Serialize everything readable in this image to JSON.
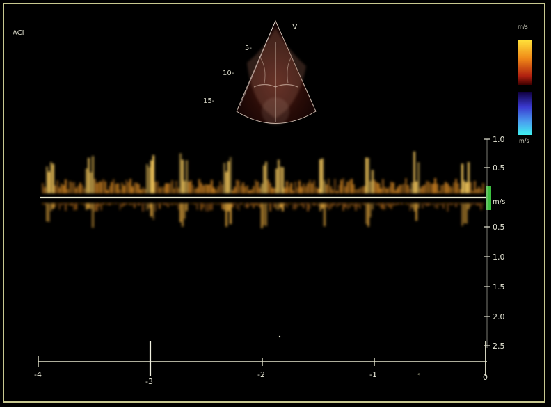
{
  "screen": {
    "probe_label": "ACI",
    "sector_marker": "V",
    "depth_markers": [
      "5-",
      "10-",
      "15-"
    ],
    "color_map": {
      "top_label": "m/s",
      "bottom_label": "m/s"
    },
    "velocity_scale": {
      "unit": "m/s",
      "upper_ticks": [
        "1.0",
        "0.5"
      ],
      "lower_ticks": [
        "0.5",
        "1.0",
        "1.5",
        "2.0",
        "2.5"
      ]
    },
    "time_axis": {
      "tick_labels": [
        "-4",
        "-3",
        "-2",
        "-1",
        "0"
      ],
      "unit": "s"
    },
    "colors": {
      "border": "#c8c890",
      "baseline": "#e8e8d0",
      "marker": "#3cc040",
      "doppler_warm": "#e0a030",
      "doppler_bright": "#ffe070",
      "colorbar_top": "#ffdd33",
      "colorbar_bottom": "#33e6ff"
    }
  }
}
